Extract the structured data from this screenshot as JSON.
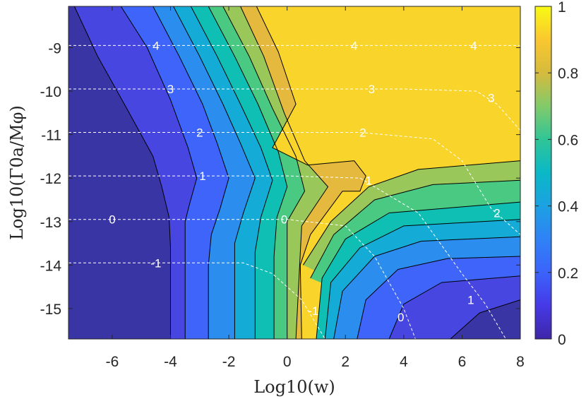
{
  "chart_data": {
    "type": "heatmap",
    "subtype": "filled-contour",
    "xlabel": "Log10(w)",
    "ylabel": "Log10(Γ0a/Mφ)",
    "xlim": [
      -7.5,
      8
    ],
    "ylim": [
      -15.7,
      -8.05
    ],
    "x_ticks": [
      "-6",
      "-4",
      "-2",
      "0",
      "2",
      "4",
      "6",
      "8"
    ],
    "y_ticks": [
      "-9",
      "-10",
      "-11",
      "-12",
      "-13",
      "-14",
      "-15"
    ],
    "colorbar": {
      "min": 0,
      "max": 1,
      "ticks": [
        "0",
        "0.2",
        "0.4",
        "0.6",
        "0.8",
        "1"
      ],
      "colormap": "parula"
    },
    "fill_levels": [
      0,
      0.1,
      0.2,
      0.3,
      0.4,
      0.5,
      0.6,
      0.7,
      0.8,
      0.9
    ],
    "fill_colors": [
      "#3a35a4",
      "#4746e0",
      "#3e64fa",
      "#2b8ded",
      "#14acd6",
      "#10bfb3",
      "#4ac982",
      "#99c75a",
      "#e5b83e",
      "#f9d42a"
    ],
    "fill_boundaries": [
      {
        "level": 0.1,
        "points": [
          [
            -7.3,
            -8.05
          ],
          [
            -6.5,
            -9.2
          ],
          [
            -5.5,
            -10.4
          ],
          [
            -4.6,
            -11.5
          ],
          [
            -4.3,
            -12.2
          ],
          [
            -4.05,
            -12.9
          ],
          [
            -4.0,
            -13.6
          ],
          [
            -4.0,
            -15.7
          ]
        ]
      },
      {
        "level": 0.2,
        "points": [
          [
            -5.7,
            -8.05
          ],
          [
            -4.8,
            -9.0
          ],
          [
            -4.0,
            -10.2
          ],
          [
            -3.4,
            -11.3
          ],
          [
            -3.1,
            -12.0
          ],
          [
            -3.35,
            -12.6
          ],
          [
            -3.5,
            -13.0
          ],
          [
            -3.5,
            -15.7
          ]
        ]
      },
      {
        "level": 0.3,
        "points": [
          [
            -4.6,
            -8.05
          ],
          [
            -3.7,
            -9.2
          ],
          [
            -2.9,
            -10.3
          ],
          [
            -2.4,
            -11.2
          ],
          [
            -2.0,
            -12.0
          ],
          [
            -2.3,
            -12.7
          ],
          [
            -2.6,
            -13.3
          ],
          [
            -2.7,
            -14.0
          ],
          [
            -2.7,
            -15.7
          ]
        ]
      },
      {
        "level": 0.4,
        "points": [
          [
            -3.9,
            -8.05
          ],
          [
            -3.0,
            -9.2
          ],
          [
            -2.2,
            -10.3
          ],
          [
            -1.6,
            -11.2
          ],
          [
            -1.1,
            -12.0
          ],
          [
            -1.5,
            -12.8
          ],
          [
            -1.8,
            -13.5
          ],
          [
            -1.8,
            -15.7
          ]
        ]
      },
      {
        "level": 0.5,
        "points": [
          [
            -3.3,
            -8.05
          ],
          [
            -2.4,
            -9.2
          ],
          [
            -1.6,
            -10.3
          ],
          [
            -0.9,
            -11.3
          ],
          [
            -0.5,
            -12.05
          ],
          [
            -0.9,
            -12.9
          ],
          [
            -1.1,
            -13.7
          ],
          [
            -1.1,
            -15.7
          ]
        ]
      },
      {
        "level": 0.6,
        "points": [
          [
            -2.7,
            -8.05
          ],
          [
            -1.8,
            -9.2
          ],
          [
            -1.0,
            -10.3
          ],
          [
            -0.3,
            -11.4
          ],
          [
            0.0,
            -12.2
          ],
          [
            -0.35,
            -12.9
          ],
          [
            -0.45,
            -13.8
          ],
          [
            -0.45,
            -15.7
          ]
        ]
      },
      {
        "level": 0.7,
        "points": [
          [
            -2.2,
            -8.05
          ],
          [
            -1.3,
            -9.2
          ],
          [
            -0.5,
            -10.4
          ],
          [
            0.3,
            -11.5
          ],
          [
            0.6,
            -12.3
          ],
          [
            0.0,
            -13.0
          ],
          [
            0.0,
            -15.7
          ]
        ]
      },
      {
        "level": 0.8,
        "points": [
          [
            -1.6,
            -8.05
          ],
          [
            -0.8,
            -9.2
          ],
          [
            -0.1,
            -10.5
          ],
          [
            0.6,
            -11.6
          ],
          [
            1.4,
            -12.2
          ],
          [
            0.5,
            -13.1
          ],
          [
            0.3,
            -15.7
          ]
        ]
      },
      {
        "level": 0.9,
        "points": [
          [
            -1.05,
            -8.05
          ],
          [
            -0.3,
            -9.1
          ],
          [
            0.3,
            -10.3
          ],
          [
            -0.5,
            -11.3
          ],
          [
            0.7,
            -11.7
          ],
          [
            2.3,
            -11.6
          ],
          [
            2.7,
            -11.95
          ],
          [
            2.5,
            -12.3
          ],
          [
            1.9,
            -12.3
          ],
          [
            0.8,
            -13.3
          ],
          [
            0.45,
            -14.0
          ],
          [
            0.5,
            -15.7
          ]
        ]
      }
    ],
    "fill_boundaries_lower_right": [
      {
        "level": 0.8,
        "points": [
          [
            0.55,
            -14.0
          ],
          [
            1.5,
            -13.0
          ],
          [
            2.8,
            -12.2
          ],
          [
            4.5,
            -11.8
          ],
          [
            8.0,
            -11.6
          ]
        ]
      },
      {
        "level": 0.7,
        "points": [
          [
            0.8,
            -14.3
          ],
          [
            1.6,
            -13.3
          ],
          [
            3.0,
            -12.5
          ],
          [
            5.0,
            -12.15
          ],
          [
            8.0,
            -12.05
          ]
        ]
      },
      {
        "level": 0.6,
        "points": [
          [
            1.0,
            -15.7
          ],
          [
            1.2,
            -14.3
          ],
          [
            2.0,
            -13.4
          ],
          [
            3.5,
            -12.8
          ],
          [
            8.0,
            -12.55
          ]
        ]
      },
      {
        "level": 0.5,
        "points": [
          [
            1.3,
            -15.7
          ],
          [
            1.5,
            -14.4
          ],
          [
            2.5,
            -13.6
          ],
          [
            4.0,
            -13.1
          ],
          [
            8.0,
            -12.95
          ]
        ]
      },
      {
        "level": 0.4,
        "points": [
          [
            1.6,
            -15.7
          ],
          [
            1.9,
            -14.6
          ],
          [
            3.0,
            -13.8
          ],
          [
            4.6,
            -13.45
          ],
          [
            8.0,
            -13.35
          ]
        ]
      },
      {
        "level": 0.3,
        "points": [
          [
            2.4,
            -15.7
          ],
          [
            2.7,
            -14.8
          ],
          [
            3.8,
            -14.1
          ],
          [
            5.5,
            -13.85
          ],
          [
            8.0,
            -13.8
          ]
        ]
      },
      {
        "level": 0.2,
        "points": [
          [
            3.5,
            -15.7
          ],
          [
            4.0,
            -14.9
          ],
          [
            5.3,
            -14.4
          ],
          [
            8.0,
            -14.25
          ]
        ]
      },
      {
        "level": 0.1,
        "points": [
          [
            5.6,
            -15.7
          ],
          [
            6.6,
            -15.1
          ],
          [
            8.0,
            -14.8
          ]
        ]
      }
    ],
    "dashed_contours": [
      {
        "label": "4",
        "points": [
          [
            -7.5,
            -8.95
          ],
          [
            8.0,
            -8.95
          ]
        ],
        "label_positions": [
          [
            -4.5,
            -8.95
          ],
          [
            2.3,
            -8.95
          ],
          [
            6.4,
            -8.95
          ]
        ]
      },
      {
        "label": "3",
        "points": [
          [
            -7.5,
            -9.95
          ],
          [
            4.0,
            -9.95
          ],
          [
            6.5,
            -10.0
          ],
          [
            7.2,
            -10.3
          ],
          [
            8.0,
            -10.9
          ]
        ],
        "label_positions": [
          [
            -4.0,
            -9.95
          ],
          [
            2.9,
            -9.95
          ],
          [
            7.0,
            -10.15
          ]
        ]
      },
      {
        "label": "2",
        "points": [
          [
            -7.5,
            -10.95
          ],
          [
            2.5,
            -10.95
          ],
          [
            5.0,
            -11.1
          ],
          [
            6.0,
            -11.6
          ],
          [
            7.0,
            -12.7
          ],
          [
            8.0,
            -13.3
          ]
        ],
        "label_positions": [
          [
            -3.0,
            -10.95
          ],
          [
            2.6,
            -10.95
          ],
          [
            7.2,
            -12.8
          ]
        ]
      },
      {
        "label": "1",
        "points": [
          [
            -7.5,
            -11.95
          ],
          [
            0.0,
            -11.95
          ],
          [
            2.5,
            -12.0
          ],
          [
            4.5,
            -12.8
          ],
          [
            6.0,
            -14.2
          ],
          [
            6.8,
            -14.9
          ],
          [
            7.5,
            -15.7
          ]
        ],
        "label_positions": [
          [
            -2.9,
            -11.95
          ],
          [
            2.8,
            -12.05
          ],
          [
            6.3,
            -14.8
          ]
        ]
      },
      {
        "label": "0",
        "points": [
          [
            -7.5,
            -12.95
          ],
          [
            0.0,
            -12.95
          ],
          [
            2.0,
            -13.1
          ],
          [
            3.0,
            -13.8
          ],
          [
            4.0,
            -15.0
          ],
          [
            4.4,
            -15.7
          ]
        ],
        "label_positions": [
          [
            -6.0,
            -12.95
          ],
          [
            -0.1,
            -12.95
          ],
          [
            3.9,
            -15.2
          ]
        ]
      },
      {
        "label": "-1",
        "points": [
          [
            -7.5,
            -13.95
          ],
          [
            -1.5,
            -13.95
          ],
          [
            -0.5,
            -14.2
          ],
          [
            0.5,
            -14.8
          ],
          [
            1.3,
            -15.7
          ]
        ],
        "label_positions": [
          [
            -4.5,
            -13.95
          ],
          [
            0.9,
            -15.05
          ]
        ]
      }
    ]
  }
}
